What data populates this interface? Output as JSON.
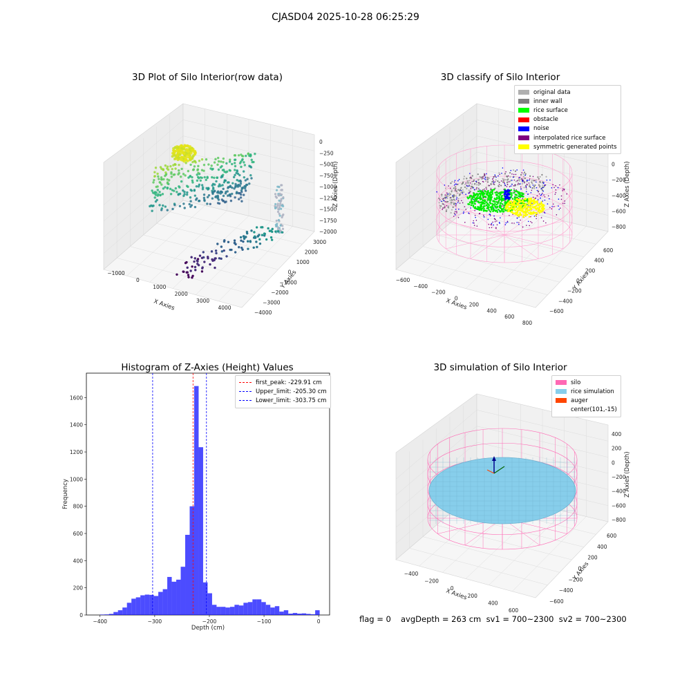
{
  "suptitle": "CJASD04 2025-10-28 06:25:29",
  "panels": {
    "raw": {
      "title": "3D Plot of Silo Interior(row data)",
      "xlabel": "X Axies",
      "ylabel": "Y Axies",
      "zlabel": "Z Axies (Depth)",
      "xticks": [
        "−1000",
        "0",
        "1000",
        "2000",
        "3000",
        "4000"
      ],
      "yticks": [
        "−4000",
        "−3000",
        "−2000",
        "−1000",
        "0",
        "1000",
        "2000",
        "3000"
      ],
      "zticks": [
        "0",
        "−250",
        "−500",
        "−750",
        "−1000",
        "−1250",
        "−1500",
        "−1750",
        "−2000"
      ]
    },
    "classify": {
      "title": "3D classify of Silo Interior",
      "xlabel": "X Axies",
      "ylabel": "Y Axies",
      "zlabel": "Z Axies (Depth)",
      "xticks": [
        "−600",
        "−400",
        "−200",
        "0",
        "200",
        "400",
        "600",
        "800"
      ],
      "yticks": [
        "−600",
        "−400",
        "−200",
        "0",
        "200",
        "400",
        "600"
      ],
      "zticks": [
        "200",
        "0",
        "−200",
        "−400",
        "−600",
        "−800"
      ],
      "legend": [
        {
          "label": "original data",
          "color": "#b0b0b0"
        },
        {
          "label": "inner wall",
          "color": "#808080"
        },
        {
          "label": "rice surface",
          "color": "#00ff00"
        },
        {
          "label": "obstacle",
          "color": "#ff0000"
        },
        {
          "label": "noise",
          "color": "#0000ff"
        },
        {
          "label": "interpolated rice surface",
          "color": "#800080"
        },
        {
          "label": "symmetric generated points",
          "color": "#ffff00"
        }
      ]
    },
    "simulation": {
      "title": "3D simulation of Silo Interior",
      "xlabel": "X Axies",
      "ylabel": "Y Axies",
      "zlabel": "Z Axies (Depth)",
      "xticks": [
        "−400",
        "−200",
        "0",
        "200",
        "400",
        "600"
      ],
      "yticks": [
        "−600",
        "−400",
        "−200",
        "0",
        "200",
        "400",
        "600"
      ],
      "zticks": [
        "400",
        "200",
        "0",
        "−200",
        "−400",
        "−600",
        "−800"
      ],
      "legend": [
        {
          "label": "silo",
          "color": "#ff69b4"
        },
        {
          "label": "rice simulation",
          "color": "#87ceeb"
        },
        {
          "label": "auger",
          "color": "#ff4500"
        },
        {
          "label": "center(101,-15)",
          "color": ""
        }
      ]
    }
  },
  "footer": {
    "flag": "flag = 0",
    "stats": "avgDepth = 263 cm  sv1 = 700~2300  sv2 = 700~2300"
  },
  "chart_data": [
    {
      "type": "bar",
      "title": "Histogram of Z-Axies (Height) Values",
      "xlabel": "Depth (cm)",
      "ylabel": "Frequency",
      "xlim": [
        -425,
        20
      ],
      "ylim": [
        0,
        1780
      ],
      "xticks": [
        -400,
        -300,
        -200,
        -100,
        0
      ],
      "yticks": [
        0,
        200,
        400,
        600,
        800,
        1000,
        1200,
        1400,
        1600
      ],
      "bar_color": "#0000ff",
      "bar_alpha": 0.7,
      "bin_width": 8.2,
      "bin_start": -400,
      "values": [
        3,
        4,
        8,
        22,
        35,
        55,
        90,
        120,
        130,
        145,
        150,
        148,
        140,
        170,
        190,
        280,
        245,
        260,
        355,
        590,
        800,
        1685,
        1235,
        240,
        160,
        75,
        60,
        60,
        55,
        60,
        75,
        70,
        90,
        95,
        115,
        115,
        95,
        75,
        55,
        65,
        25,
        35,
        10,
        15,
        10,
        12,
        8,
        5,
        35
      ],
      "lines": [
        {
          "x": -229.91,
          "color": "#ff0000",
          "label": "first_peak: -229.91 cm"
        },
        {
          "x": -205.3,
          "color": "#0000ff",
          "label": "Upper_limit: -205.30 cm"
        },
        {
          "x": -303.75,
          "color": "#0000ff",
          "label": "Lower_limit: -303.75 cm"
        }
      ],
      "legend_position": "top-right"
    }
  ]
}
